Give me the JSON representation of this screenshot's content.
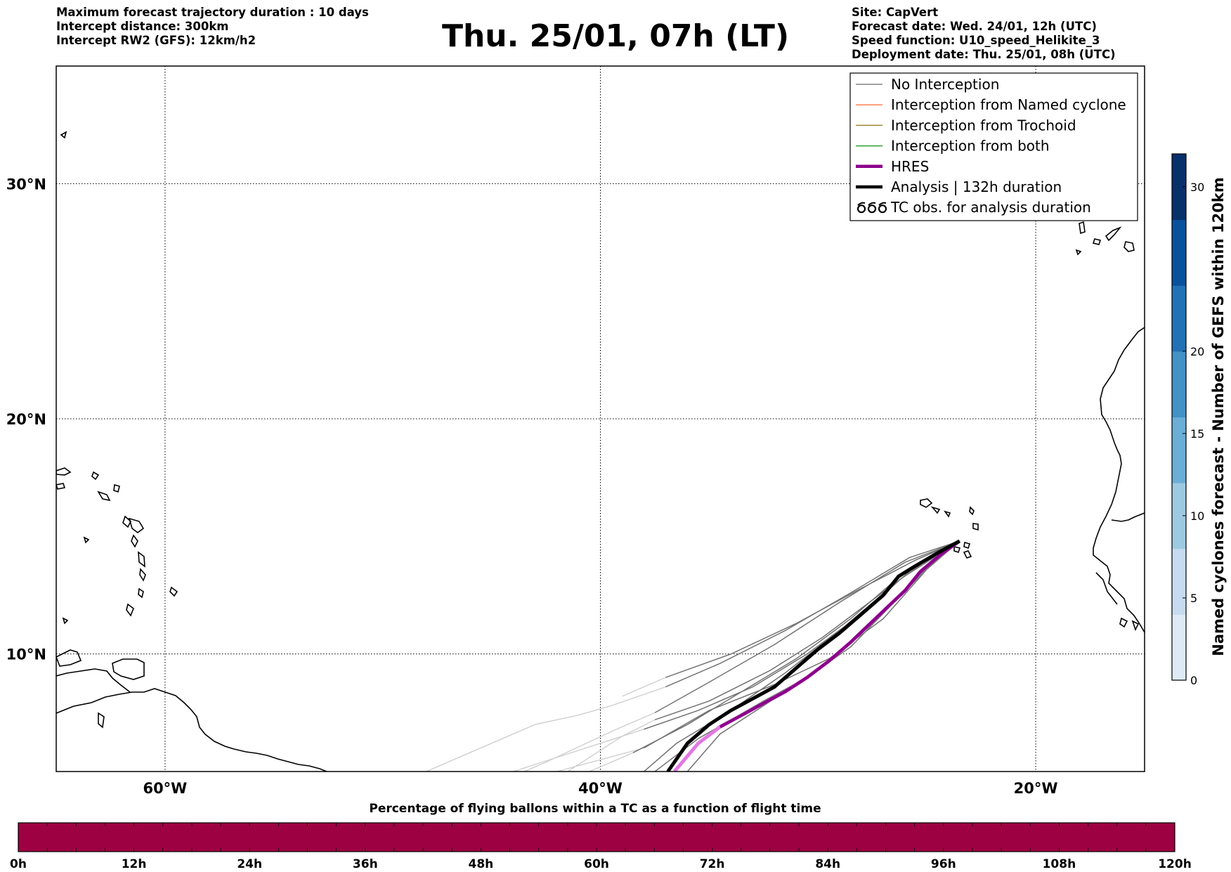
{
  "header": {
    "left_lines": [
      "Maximum forecast trajectory duration : 10 days",
      "Intercept distance: 300km",
      "Intercept RW2 (GFS):  12km/h2"
    ],
    "title": "Thu. 25/01, 07h (LT)",
    "right_lines": [
      "Site: CapVert",
      "Forecast date: Wed. 24/01, 12h (UTC)",
      "Speed function: U10_speed_Helikite_3",
      "Deployment date: Thu. 25/01, 08h (UTC)"
    ]
  },
  "map": {
    "lon_range": [
      -65,
      -15
    ],
    "lat_range": [
      5,
      35
    ],
    "lon_ticks": [
      {
        "value": -60,
        "label": "60°W"
      },
      {
        "value": -40,
        "label": "40°W"
      },
      {
        "value": -20,
        "label": "20°W"
      }
    ],
    "lat_ticks": [
      {
        "value": 30,
        "label": "30°N"
      },
      {
        "value": 20,
        "label": "20°N"
      },
      {
        "value": 10,
        "label": "10°N"
      }
    ],
    "gridlines": "dotted",
    "deployment_site": {
      "lon": -23.5,
      "lat": 14.8
    }
  },
  "legend": {
    "placement": "top-right",
    "entries": [
      {
        "label": "No Interception",
        "color": "#808080",
        "style": "thin"
      },
      {
        "label": "Interception from Named cyclone",
        "color": "#ff7f50",
        "style": "thin"
      },
      {
        "label": "Interception from Trochoid",
        "color": "#9c8a2a",
        "style": "thin"
      },
      {
        "label": "Interception from both",
        "color": "#2ca02c",
        "style": "thin"
      },
      {
        "label": "HRES",
        "color": "#8b008b",
        "style": "thick"
      },
      {
        "label": "Analysis | 132h duration",
        "color": "#000000",
        "style": "thick"
      },
      {
        "label": "TC obs. for analysis duration",
        "icon": "cyclone-symbols-icon"
      }
    ]
  },
  "colorbar": {
    "label": "Named cyclones forecast - Number of GEFS within 120km",
    "ticks": [
      0,
      5,
      10,
      15,
      20,
      30
    ],
    "range": [
      0,
      32
    ],
    "colors": [
      "#deebf7",
      "#c6dbef",
      "#9ecae1",
      "#6baed6",
      "#4292c6",
      "#2171b5",
      "#08519c",
      "#08306b"
    ]
  },
  "bottom_bar": {
    "title": "Percentage of flying ballons within a TC as a function of flight time",
    "ticks": [
      "0h",
      "12h",
      "24h",
      "36h",
      "48h",
      "60h",
      "72h",
      "84h",
      "96h",
      "108h",
      "120h"
    ],
    "color": "#9e0142"
  },
  "trajectories": {
    "analysis": [
      [
        -23.5,
        14.8
      ],
      [
        -24.5,
        14.3
      ],
      [
        -25.6,
        13.7
      ],
      [
        -26.3,
        13.3
      ],
      [
        -27.0,
        12.5
      ],
      [
        -28.0,
        11.7
      ],
      [
        -29.0,
        10.9
      ],
      [
        -30.0,
        10.2
      ],
      [
        -31.0,
        9.4
      ],
      [
        -32.0,
        8.6
      ],
      [
        -33.0,
        8.1
      ],
      [
        -34.0,
        7.6
      ],
      [
        -35.0,
        7.0
      ],
      [
        -36.0,
        6.2
      ],
      [
        -36.9,
        5.0
      ]
    ],
    "hres": [
      [
        -23.5,
        14.8
      ],
      [
        -24.4,
        14.2
      ],
      [
        -25.3,
        13.5
      ],
      [
        -26.0,
        12.7
      ],
      [
        -26.8,
        12.0
      ],
      [
        -27.6,
        11.3
      ],
      [
        -28.5,
        10.5
      ],
      [
        -29.5,
        9.7
      ],
      [
        -30.5,
        9.0
      ],
      [
        -31.5,
        8.4
      ],
      [
        -32.5,
        7.9
      ],
      [
        -33.5,
        7.4
      ],
      [
        -34.5,
        6.9
      ],
      [
        -35.5,
        6.2
      ],
      [
        -36.6,
        5.0
      ]
    ],
    "ensemble": [
      [
        [
          -23.5,
          14.8
        ],
        [
          -25.5,
          14.0
        ],
        [
          -28.0,
          12.8
        ],
        [
          -31.0,
          11.3
        ],
        [
          -34.0,
          10.0
        ],
        [
          -37.0,
          9.0
        ],
        [
          -39.0,
          8.2
        ]
      ],
      [
        [
          -23.5,
          14.8
        ],
        [
          -25.8,
          14.1
        ],
        [
          -28.5,
          12.6
        ],
        [
          -31.5,
          11.0
        ],
        [
          -34.5,
          9.6
        ],
        [
          -37.0,
          8.6
        ],
        [
          -39.5,
          7.8
        ],
        [
          -41.0,
          7.4
        ],
        [
          -43.0,
          7.0
        ],
        [
          -46.0,
          5.8
        ],
        [
          -48.0,
          5.0
        ]
      ],
      [
        [
          -23.5,
          14.8
        ],
        [
          -25.0,
          13.6
        ],
        [
          -27.0,
          11.5
        ],
        [
          -29.5,
          9.8
        ],
        [
          -32.0,
          8.7
        ],
        [
          -35.0,
          7.6
        ],
        [
          -38.0,
          6.0
        ],
        [
          -42.0,
          5.0
        ]
      ],
      [
        [
          -23.5,
          14.8
        ],
        [
          -26.0,
          13.5
        ],
        [
          -28.5,
          11.5
        ],
        [
          -31.0,
          9.8
        ],
        [
          -33.5,
          8.4
        ],
        [
          -36.0,
          7.0
        ],
        [
          -38.5,
          5.8
        ],
        [
          -40.5,
          5.0
        ]
      ],
      [
        [
          -23.5,
          14.8
        ],
        [
          -26.2,
          13.2
        ],
        [
          -29.0,
          11.0
        ],
        [
          -31.5,
          9.2
        ],
        [
          -34.0,
          7.6
        ],
        [
          -36.5,
          6.2
        ],
        [
          -38.0,
          5.0
        ]
      ],
      [
        [
          -23.5,
          14.8
        ],
        [
          -25.7,
          13.6
        ],
        [
          -28.0,
          11.7
        ],
        [
          -30.5,
          10.0
        ],
        [
          -33.0,
          8.6
        ],
        [
          -35.5,
          7.6
        ],
        [
          -38.0,
          6.8
        ],
        [
          -40.0,
          6.2
        ],
        [
          -44.0,
          5.0
        ]
      ],
      [
        [
          -23.5,
          14.8
        ],
        [
          -24.8,
          13.8
        ],
        [
          -26.5,
          12.2
        ],
        [
          -28.5,
          10.3
        ],
        [
          -30.5,
          9.0
        ],
        [
          -32.5,
          8.0
        ],
        [
          -35.5,
          6.4
        ],
        [
          -37.5,
          5.0
        ]
      ],
      [
        [
          -23.5,
          14.8
        ],
        [
          -25.0,
          14.0
        ],
        [
          -27.2,
          12.5
        ],
        [
          -29.8,
          10.7
        ],
        [
          -32.2,
          9.3
        ],
        [
          -35.0,
          8.0
        ],
        [
          -37.5,
          7.2
        ],
        [
          -39.0,
          6.5
        ],
        [
          -41.5,
          5.0
        ]
      ],
      [
        [
          -23.5,
          14.8
        ],
        [
          -25.4,
          13.3
        ],
        [
          -27.6,
          11.2
        ],
        [
          -30.0,
          9.3
        ],
        [
          -32.5,
          7.8
        ],
        [
          -34.5,
          6.6
        ],
        [
          -36.0,
          5.0
        ]
      ],
      [
        [
          -23.5,
          14.8
        ],
        [
          -26.0,
          13.9
        ],
        [
          -29.0,
          12.2
        ],
        [
          -32.0,
          10.4
        ],
        [
          -35.0,
          8.8
        ],
        [
          -37.5,
          7.5
        ],
        [
          -39.5,
          6.7
        ],
        [
          -42.5,
          5.4
        ],
        [
          -43.5,
          5.0
        ]
      ]
    ]
  }
}
